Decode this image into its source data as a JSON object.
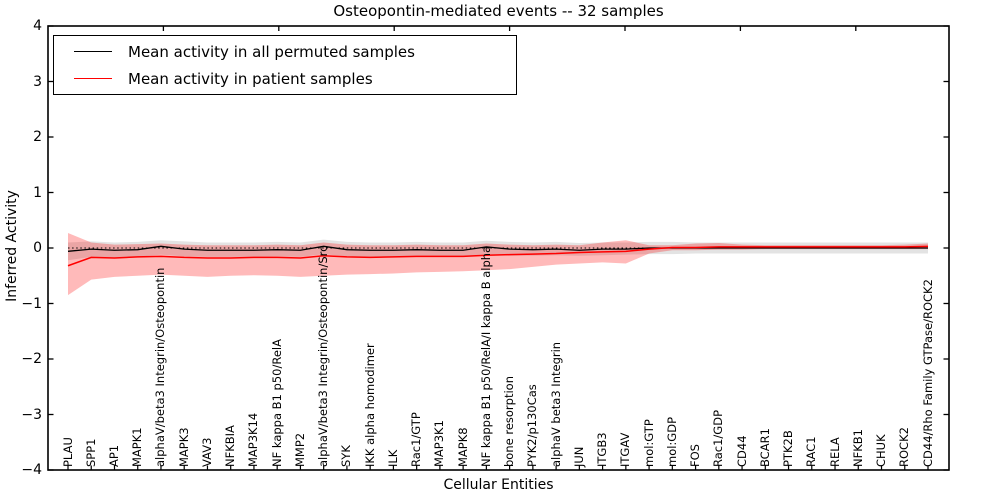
{
  "chart_data": {
    "type": "line",
    "title": "Osteopontin-mediated events -- 32 samples",
    "xlabel": "Cellular Entities",
    "ylabel": "Inferred Activity",
    "ylim": [
      -4,
      4
    ],
    "yticks": [
      "4",
      "3",
      "2",
      "1",
      "0",
      "−1",
      "−2",
      "−3",
      "−4"
    ],
    "grid": false,
    "legend_position": "upper left",
    "zero_line": {
      "y": 0,
      "style": "dotted",
      "color": "#000000"
    },
    "categories": [
      "PLAU",
      "SPP1",
      "AP1",
      "MAPK1",
      "alphaV/beta3 Integrin/Osteopontin",
      "MAPK3",
      "VAV3",
      "NFKBIA",
      "MAP3K14",
      "NF kappa B1 p50/RelA",
      "MMP2",
      "alphaV/beta3 Integrin/Osteopontin/Src",
      "SYK",
      "IKK alpha homodimer",
      "ILK",
      "Rac1/GTP",
      "MAP3K1",
      "MAPK8",
      "NF kappa B1 p50/RelA/I kappa B alpha",
      "bone resorption",
      "PYK2/p130Cas",
      "alphaV beta3 Integrin",
      "JUN",
      "ITGB3",
      "ITGAV",
      "mol:GTP",
      "mol:GDP",
      "FOS",
      "Rac1/GDP",
      "CD44",
      "BCAR1",
      "PTK2B",
      "RAC1",
      "RELA",
      "NFKB1",
      "CHUK",
      "ROCK2",
      "CD44/Rho Family GTPase/ROCK2"
    ],
    "series": [
      {
        "name": "Mean activity in all permuted samples",
        "color": "#000000",
        "band_color": "#808080",
        "band_opacity": 0.22,
        "values": [
          -0.06,
          -0.02,
          -0.04,
          -0.03,
          0.03,
          -0.02,
          -0.04,
          -0.04,
          -0.04,
          -0.03,
          -0.04,
          0.03,
          -0.03,
          -0.04,
          -0.04,
          -0.03,
          -0.04,
          -0.04,
          0.02,
          -0.02,
          -0.03,
          -0.02,
          -0.04,
          -0.02,
          -0.02,
          0,
          0,
          0,
          0,
          0,
          0,
          0,
          0,
          0,
          0,
          0,
          0,
          0
        ],
        "band_upper": [
          0.1,
          0.12,
          0.1,
          0.11,
          0.14,
          0.12,
          0.1,
          0.1,
          0.1,
          0.11,
          0.1,
          0.15,
          0.11,
          0.1,
          0.1,
          0.11,
          0.1,
          0.1,
          0.13,
          0.11,
          0.1,
          0.11,
          0.09,
          0.1,
          0.1,
          0.11,
          0.11,
          0.1,
          0.1,
          0.1,
          0.1,
          0.1,
          0.1,
          0.1,
          0.1,
          0.1,
          0.1,
          0.1
        ],
        "band_lower": [
          -0.22,
          -0.16,
          -0.17,
          -0.16,
          -0.12,
          -0.15,
          -0.16,
          -0.16,
          -0.16,
          -0.15,
          -0.16,
          -0.11,
          -0.15,
          -0.16,
          -0.15,
          -0.15,
          -0.15,
          -0.15,
          -0.11,
          -0.14,
          -0.14,
          -0.13,
          -0.14,
          -0.13,
          -0.12,
          -0.11,
          -0.11,
          -0.1,
          -0.1,
          -0.1,
          -0.1,
          -0.1,
          -0.1,
          -0.1,
          -0.1,
          -0.1,
          -0.1,
          -0.1
        ]
      },
      {
        "name": "Mean activity in patient samples",
        "color": "#ff0000",
        "band_color": "#ff0000",
        "band_opacity": 0.27,
        "values": [
          -0.32,
          -0.17,
          -0.18,
          -0.16,
          -0.15,
          -0.17,
          -0.18,
          -0.18,
          -0.17,
          -0.17,
          -0.18,
          -0.14,
          -0.16,
          -0.17,
          -0.16,
          -0.15,
          -0.15,
          -0.15,
          -0.13,
          -0.12,
          -0.11,
          -0.1,
          -0.08,
          -0.07,
          -0.06,
          -0.02,
          0.01,
          0.01,
          0.02,
          0.02,
          0.02,
          0.02,
          0.02,
          0.02,
          0.02,
          0.02,
          0.02,
          0.03
        ],
        "band_upper": [
          0.27,
          0.1,
          0.06,
          0.07,
          0.08,
          0.06,
          0.05,
          0.05,
          0.05,
          0.06,
          0.05,
          0.1,
          0.06,
          0.05,
          0.05,
          0.06,
          0.05,
          0.05,
          0.08,
          0.06,
          0.05,
          0.06,
          0.05,
          0.1,
          0.14,
          0.05,
          0.05,
          0.08,
          0.09,
          0.06,
          0.05,
          0.05,
          0.05,
          0.05,
          0.05,
          0.05,
          0.06,
          0.08
        ],
        "band_lower": [
          -0.85,
          -0.57,
          -0.52,
          -0.5,
          -0.48,
          -0.5,
          -0.52,
          -0.5,
          -0.49,
          -0.5,
          -0.52,
          -0.5,
          -0.48,
          -0.47,
          -0.46,
          -0.44,
          -0.43,
          -0.42,
          -0.4,
          -0.38,
          -0.34,
          -0.3,
          -0.28,
          -0.26,
          -0.28,
          -0.1,
          -0.04,
          -0.04,
          -0.03,
          -0.03,
          -0.02,
          -0.02,
          -0.02,
          -0.02,
          -0.02,
          -0.02,
          -0.02,
          -0.02
        ]
      }
    ]
  }
}
